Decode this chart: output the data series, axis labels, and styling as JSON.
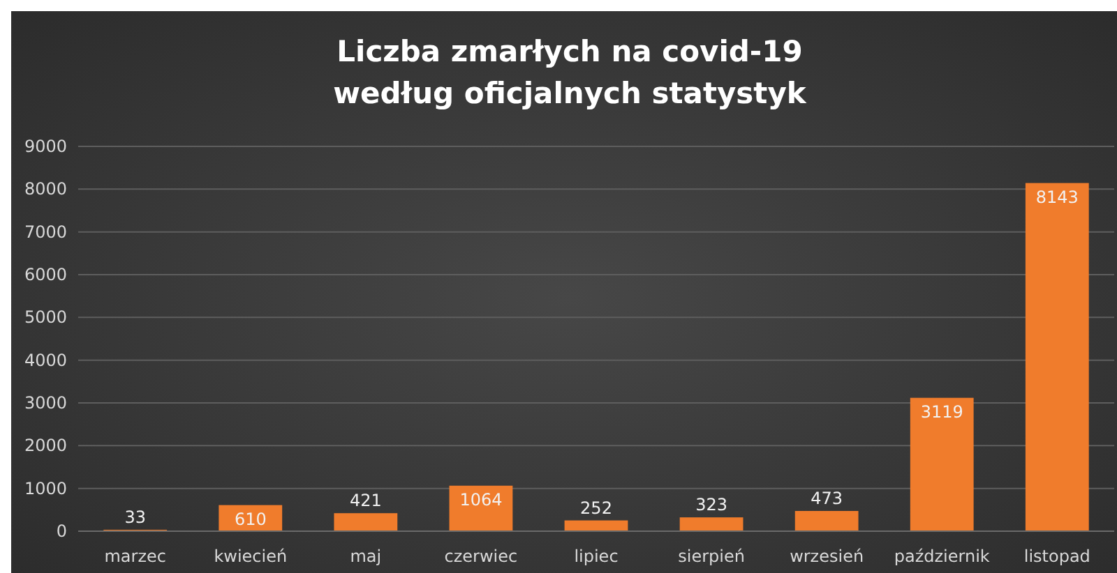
{
  "chart_data": {
    "type": "bar",
    "title": "Liczba zmarłych na covid-19\nwedług oficjalnych statystyk",
    "categories": [
      "marzec",
      "kwiecień",
      "maj",
      "czerwiec",
      "lipiec",
      "sierpień",
      "wrzesień",
      "październik",
      "listopad"
    ],
    "values": [
      33,
      610,
      421,
      1064,
      252,
      323,
      473,
      3119,
      8143
    ],
    "color": "#f07c2c",
    "ylim": [
      0,
      9000
    ],
    "yticks": [
      0,
      1000,
      2000,
      3000,
      4000,
      5000,
      6000,
      7000,
      8000,
      9000
    ],
    "grid": "y",
    "data_labels": true
  }
}
